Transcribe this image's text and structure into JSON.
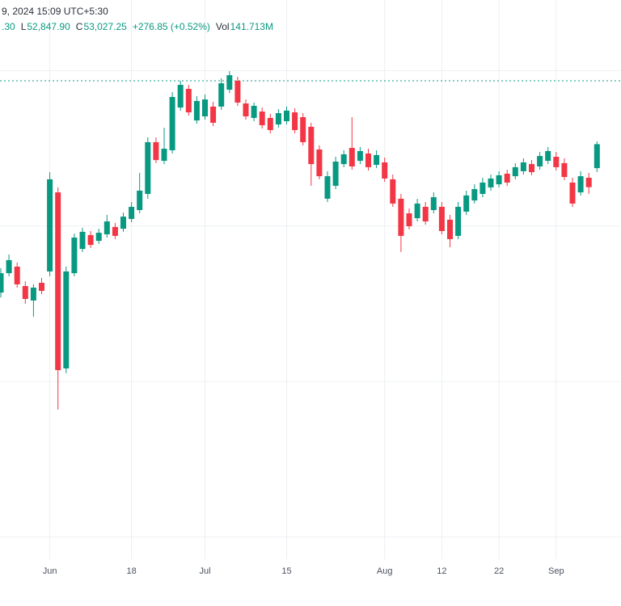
{
  "header": {
    "timestamp_text": "9, 2024 15:09 UTC+5:30",
    "ohlc": {
      "h_partial": ".30",
      "l_label": "L",
      "l_value": "52,847.90",
      "c_label": "C",
      "c_value": "53,027.25",
      "change_text": "+276.85 (+0.52%)",
      "vol_label": "Vol",
      "vol_value": "141.713M"
    }
  },
  "colors": {
    "up": "#089981",
    "down": "#f23645",
    "grid_vertical": "#eceef2",
    "grid_horizontal": "#eef0f4",
    "axis_text": "#4c5160",
    "legend_text": "#2a2e39",
    "dashed_level_line": "#089981",
    "background": "#ffffff"
  },
  "chart_data": {
    "type": "candlestick",
    "title": "",
    "xlabel": "",
    "ylabel": "",
    "legend_position": "top-left",
    "grid": true,
    "y_axis": {
      "max": 53955,
      "min": 50055
    },
    "h_gridlines": [
      53500,
      52500,
      51500,
      50500
    ],
    "price_level_line": {
      "value": 53435,
      "style": "dashed",
      "color": "#089981"
    },
    "x_ticks": [
      {
        "label": "Jun",
        "i": 6
      },
      {
        "label": "18",
        "i": 16
      },
      {
        "label": "Jul",
        "i": 25
      },
      {
        "label": "15",
        "i": 35
      },
      {
        "label": "Aug",
        "i": 47
      },
      {
        "label": "12",
        "i": 54
      },
      {
        "label": "22",
        "i": 61
      },
      {
        "label": "Sep",
        "i": 68
      }
    ],
    "candles_format": [
      "date",
      "open",
      "high",
      "low",
      "close"
    ],
    "candles": [
      [
        "2024-05-24",
        52072,
        52229,
        52041,
        52197
      ],
      [
        "2024-05-27",
        52197,
        52317,
        52177,
        52281
      ],
      [
        "2024-05-28",
        52239,
        52265,
        52104,
        52125
      ],
      [
        "2024-05-29",
        52114,
        52145,
        52000,
        52031
      ],
      [
        "2024-05-30",
        52021,
        52125,
        51917,
        52104
      ],
      [
        "2024-05-31",
        52135,
        52166,
        52062,
        52083
      ],
      [
        "2024-06-03",
        52208,
        52847,
        52177,
        52801
      ],
      [
        "2024-06-04",
        52717,
        52749,
        51319,
        51573
      ],
      [
        "2024-06-05",
        51584,
        52239,
        51553,
        52208
      ],
      [
        "2024-06-06",
        52197,
        52452,
        52177,
        52426
      ],
      [
        "2024-06-07",
        52353,
        52489,
        52333,
        52463
      ],
      [
        "2024-06-10",
        52442,
        52468,
        52359,
        52379
      ],
      [
        "2024-06-11",
        52405,
        52483,
        52385,
        52457
      ],
      [
        "2024-06-12",
        52447,
        52572,
        52426,
        52530
      ],
      [
        "2024-06-13",
        52494,
        52520,
        52416,
        52437
      ],
      [
        "2024-06-14",
        52483,
        52587,
        52463,
        52561
      ],
      [
        "2024-06-18",
        52546,
        52655,
        52525,
        52624
      ],
      [
        "2024-06-19",
        52603,
        52842,
        52582,
        52728
      ],
      [
        "2024-06-20",
        52707,
        53071,
        52676,
        53040
      ],
      [
        "2024-06-21",
        53040,
        53071,
        52905,
        52925
      ],
      [
        "2024-06-24",
        52920,
        53133,
        52899,
        52998
      ],
      [
        "2024-06-25",
        52988,
        53362,
        52967,
        53331
      ],
      [
        "2024-06-26",
        53263,
        53435,
        53243,
        53409
      ],
      [
        "2024-06-27",
        53383,
        53409,
        53211,
        53232
      ],
      [
        "2024-06-28",
        53180,
        53336,
        53159,
        53305
      ],
      [
        "2024-07-01",
        53206,
        53347,
        53185,
        53315
      ],
      [
        "2024-07-02",
        53269,
        53300,
        53144,
        53165
      ],
      [
        "2024-07-03",
        53269,
        53451,
        53248,
        53419
      ],
      [
        "2024-07-04",
        53378,
        53497,
        53357,
        53471
      ],
      [
        "2024-07-05",
        53435,
        53461,
        53274,
        53295
      ],
      [
        "2024-07-08",
        53289,
        53315,
        53185,
        53206
      ],
      [
        "2024-07-09",
        53196,
        53295,
        53175,
        53274
      ],
      [
        "2024-07-10",
        53237,
        53263,
        53128,
        53149
      ],
      [
        "2024-07-11",
        53196,
        53222,
        53097,
        53118
      ],
      [
        "2024-07-12",
        53154,
        53253,
        53133,
        53227
      ],
      [
        "2024-07-15",
        53175,
        53269,
        53154,
        53243
      ],
      [
        "2024-07-16",
        53232,
        53258,
        53097,
        53118
      ],
      [
        "2024-07-18",
        53201,
        53227,
        53019,
        53040
      ],
      [
        "2024-07-19",
        53139,
        53165,
        52759,
        52899
      ],
      [
        "2024-07-22",
        52993,
        53019,
        52801,
        52821
      ],
      [
        "2024-07-23",
        52676,
        52853,
        52655,
        52821
      ],
      [
        "2024-07-24",
        52759,
        52946,
        52738,
        52915
      ],
      [
        "2024-07-25",
        52899,
        52988,
        52879,
        52962
      ],
      [
        "2024-07-26",
        53003,
        53201,
        52863,
        52884
      ],
      [
        "2024-07-29",
        52920,
        53009,
        52899,
        52983
      ],
      [
        "2024-07-30",
        52967,
        52998,
        52858,
        52879
      ],
      [
        "2024-07-31",
        52894,
        52988,
        52873,
        52957
      ],
      [
        "2024-08-01",
        52910,
        52941,
        52785,
        52806
      ],
      [
        "2024-08-02",
        52801,
        52832,
        52624,
        52645
      ],
      [
        "2024-08-05",
        52676,
        52707,
        52333,
        52437
      ],
      [
        "2024-08-06",
        52582,
        52613,
        52478,
        52499
      ],
      [
        "2024-08-07",
        52551,
        52676,
        52530,
        52645
      ],
      [
        "2024-08-08",
        52624,
        52655,
        52509,
        52530
      ],
      [
        "2024-08-09",
        52603,
        52717,
        52582,
        52686
      ],
      [
        "2024-08-12",
        52624,
        52655,
        52447,
        52468
      ],
      [
        "2024-08-13",
        52541,
        52572,
        52364,
        52416
      ],
      [
        "2024-08-14",
        52437,
        52655,
        52416,
        52624
      ],
      [
        "2024-08-16",
        52593,
        52728,
        52572,
        52697
      ],
      [
        "2024-08-19",
        52665,
        52769,
        52645,
        52738
      ],
      [
        "2024-08-20",
        52707,
        52811,
        52686,
        52780
      ],
      [
        "2024-08-21",
        52749,
        52832,
        52728,
        52806
      ],
      [
        "2024-08-22",
        52769,
        52853,
        52749,
        52827
      ],
      [
        "2024-08-23",
        52837,
        52863,
        52759,
        52780
      ],
      [
        "2024-08-26",
        52821,
        52905,
        52801,
        52879
      ],
      [
        "2024-08-27",
        52853,
        52936,
        52832,
        52910
      ],
      [
        "2024-08-28",
        52899,
        52925,
        52827,
        52847
      ],
      [
        "2024-08-29",
        52884,
        52977,
        52863,
        52951
      ],
      [
        "2024-08-30",
        52920,
        53009,
        52899,
        52983
      ],
      [
        "2024-09-02",
        52946,
        52977,
        52858,
        52879
      ],
      [
        "2024-09-03",
        52905,
        52936,
        52795,
        52816
      ],
      [
        "2024-09-04",
        52780,
        52811,
        52624,
        52645
      ],
      [
        "2024-09-05",
        52717,
        52853,
        52697,
        52821
      ],
      [
        "2024-09-06",
        52811,
        52842,
        52707,
        52750.4
      ],
      [
        "2024-09-09",
        52873,
        53045.3,
        52847.9,
        53027.25
      ]
    ]
  }
}
